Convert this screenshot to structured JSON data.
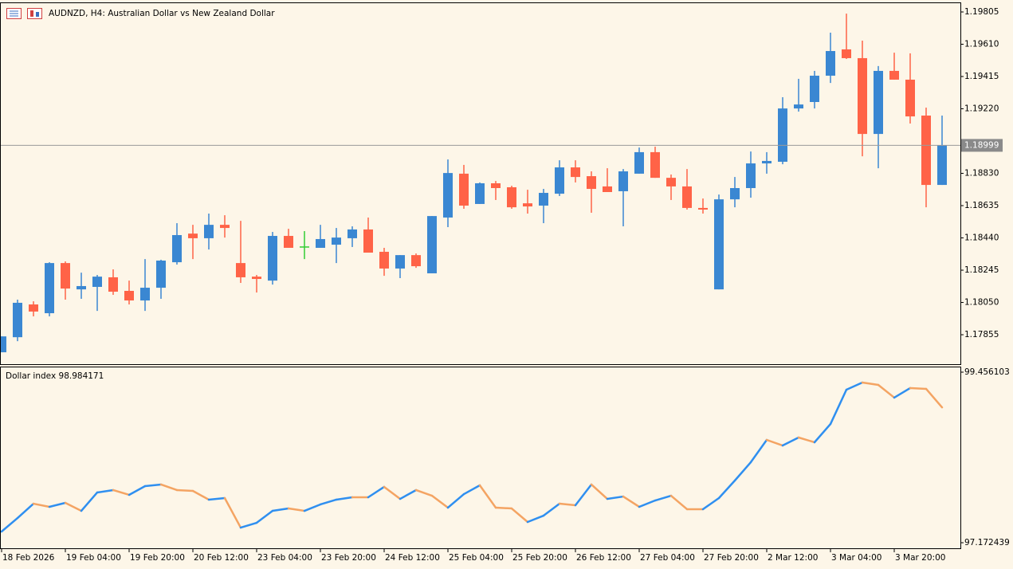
{
  "chart_data": [
    {
      "type": "candlestick",
      "title": "AUDNZD, H4:  Australian Dollar vs New Zealand Dollar",
      "categories": [
        "18 Feb 2026",
        null,
        null,
        null,
        "19 Feb 04:00",
        null,
        null,
        null,
        "19 Feb 20:00",
        null,
        null,
        null,
        "20 Feb 12:00",
        null,
        null,
        null,
        "23 Feb 04:00",
        null,
        null,
        null,
        "23 Feb 20:00",
        null,
        null,
        null,
        "24 Feb 12:00",
        null,
        null,
        null,
        "25 Feb 04:00",
        null,
        null,
        null,
        "25 Feb 20:00",
        null,
        null,
        null,
        "26 Feb 12:00",
        null,
        null,
        null,
        "27 Feb 04:00",
        null,
        null,
        null,
        "27 Feb 20:00",
        null,
        null,
        null,
        "2 Mar 12:00",
        null,
        null,
        null,
        "3 Mar 04:00",
        null,
        null,
        null,
        "3 Mar 20:00",
        null,
        null,
        null
      ],
      "open": [
        1.17749,
        1.1784,
        1.18038,
        1.17985,
        1.18288,
        1.18129,
        1.18144,
        1.18202,
        1.1812,
        1.18062,
        1.18139,
        1.18293,
        1.18466,
        1.18438,
        1.18519,
        1.18288,
        1.18206,
        1.18182,
        1.18452,
        1.18385,
        1.1838,
        1.18399,
        1.18438,
        1.18491,
        1.18356,
        1.18255,
        1.18336,
        1.18226,
        1.18563,
        1.18828,
        1.18645,
        1.1877,
        1.18746,
        1.18649,
        1.18635,
        1.18707,
        1.18866,
        1.18813,
        1.18751,
        1.18722,
        1.18828,
        1.18958,
        1.18803,
        1.18751,
        1.18621,
        1.18129,
        1.18673,
        1.18741,
        1.1889,
        1.189,
        1.19222,
        1.19261,
        1.1942,
        1.19579,
        1.19526,
        1.19068,
        1.19449,
        1.19396,
        1.19179,
        1.1876
      ],
      "high": [
        1.17845,
        1.18067,
        1.18057,
        1.18293,
        1.18298,
        1.1823,
        1.18216,
        1.1825,
        1.18182,
        1.18312,
        1.18308,
        1.18529,
        1.18519,
        1.18587,
        1.18577,
        1.18543,
        1.18216,
        1.18476,
        1.18495,
        1.18481,
        1.18519,
        1.185,
        1.1851,
        1.18563,
        1.1838,
        1.18336,
        1.18346,
        1.18572,
        1.18914,
        1.18881,
        1.18775,
        1.18784,
        1.18755,
        1.18731,
        1.18736,
        1.18909,
        1.18909,
        1.18842,
        1.18861,
        1.18856,
        1.18986,
        1.18991,
        1.18823,
        1.18856,
        1.18678,
        1.18702,
        1.18808,
        1.18962,
        1.18958,
        1.1929,
        1.19401,
        1.19449,
        1.1968,
        1.19795,
        1.19632,
        1.19478,
        1.19559,
        1.19555,
        1.19227,
        1.19179
      ],
      "low": [
        1.17749,
        1.17816,
        1.17966,
        1.17966,
        1.18067,
        1.18072,
        1.17999,
        1.18096,
        1.18038,
        1.17999,
        1.18072,
        1.18279,
        1.18312,
        1.1837,
        1.18442,
        1.18168,
        1.1811,
        1.18158,
        1.1838,
        1.18312,
        1.1838,
        1.18288,
        1.18385,
        1.18351,
        1.18211,
        1.18197,
        1.18259,
        1.18226,
        1.18505,
        1.18616,
        1.18645,
        1.18669,
        1.18616,
        1.18587,
        1.18529,
        1.18693,
        1.18775,
        1.18592,
        1.18717,
        1.1851,
        1.18828,
        1.18803,
        1.18669,
        1.18611,
        1.18587,
        1.18129,
        1.18625,
        1.18683,
        1.18828,
        1.18885,
        1.19203,
        1.19222,
        1.19376,
        1.19521,
        1.18933,
        1.18861,
        1.19396,
        1.19131,
        1.18625,
        1.1876
      ],
      "close": [
        1.17845,
        1.18048,
        1.17995,
        1.18288,
        1.18134,
        1.18149,
        1.18206,
        1.18115,
        1.18062,
        1.18139,
        1.18303,
        1.18457,
        1.18438,
        1.18519,
        1.185,
        1.18202,
        1.18192,
        1.18452,
        1.1838,
        1.18385,
        1.18433,
        1.18442,
        1.18491,
        1.18351,
        1.18255,
        1.18336,
        1.18269,
        1.18572,
        1.18832,
        1.18635,
        1.1877,
        1.18741,
        1.18625,
        1.1863,
        1.18712,
        1.18866,
        1.18808,
        1.18736,
        1.18717,
        1.18842,
        1.18958,
        1.18803,
        1.18751,
        1.18621,
        1.18611,
        1.18673,
        1.18741,
        1.1889,
        1.18905,
        1.19222,
        1.19246,
        1.1942,
        1.19569,
        1.19526,
        1.19068,
        1.19449,
        1.19396,
        1.19174,
        1.1876,
        1.18999
      ],
      "up_color": "#3a87d2",
      "down_color": "#ff6347",
      "doji_color": "#32cd32",
      "ylim": [
        1.17677,
        1.19858
      ],
      "yticks": [
        1.19805,
        {
          "value": 1.1961,
          "label": "1.19610"
        },
        1.19415,
        {
          "value": 1.1922,
          "label": "1.19220"
        },
        {
          "value": 1.1883,
          "label": "1.18830"
        },
        1.18635,
        {
          "value": 1.1844,
          "label": "1.18440"
        },
        1.18245,
        {
          "value": 1.1805,
          "label": "1.18050"
        },
        1.17855
      ]
    },
    {
      "type": "line",
      "name": "Dollar index",
      "values": [
        97.322,
        97.503,
        97.695,
        97.653,
        97.706,
        97.599,
        97.845,
        97.877,
        97.813,
        97.93,
        97.952,
        97.877,
        97.866,
        97.749,
        97.77,
        97.375,
        97.439,
        97.599,
        97.631,
        97.599,
        97.685,
        97.749,
        97.781,
        97.781,
        97.92,
        97.759,
        97.877,
        97.802,
        97.642,
        97.823,
        97.941,
        97.642,
        97.631,
        97.45,
        97.535,
        97.695,
        97.674,
        97.952,
        97.759,
        97.791,
        97.653,
        97.738,
        97.802,
        97.621,
        97.621,
        97.77,
        98.005,
        98.25,
        98.549,
        98.474,
        98.581,
        98.517,
        98.762,
        99.221,
        99.317,
        99.285,
        99.115,
        99.243,
        99.232,
        98.984171
      ],
      "up_color": "#2f8ff0",
      "down_color": "#f4a463",
      "ylim": [
        97.098,
        99.52
      ],
      "yticks": [
        99.456103,
        97.172439
      ]
    }
  ]
}
